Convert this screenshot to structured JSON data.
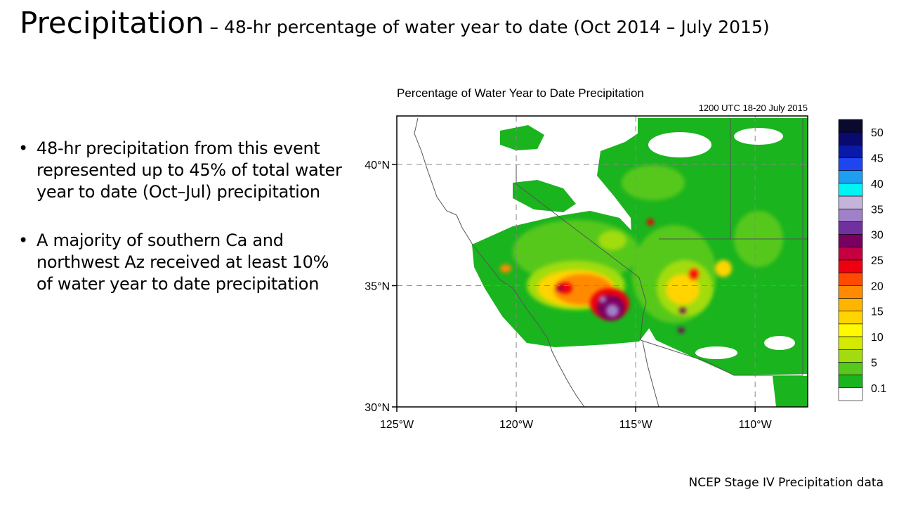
{
  "slide": {
    "title_main": "Precipitation",
    "title_sub": " – 48-hr percentage of water year to date (Oct 2014 – July 2015)",
    "bullets": [
      "48-hr precipitation from this event represented up to 45% of total water year to date (Oct–Jul) precipitation",
      "A majority of southern Ca and northwest Az received at least 10% of water year to date precipitation"
    ],
    "bullet_symbol": "•",
    "footer_source": "NCEP Stage IV Precipitation data"
  },
  "map": {
    "title": "Percentage of Water Year to Date Precipitation",
    "subtitle": "1200 UTC 18-20 July 2015",
    "lat_labels": [
      "40°N",
      "35°N",
      "30°N"
    ],
    "lat_values": [
      40,
      35,
      30
    ],
    "lon_labels": [
      "125°W",
      "120°W",
      "115°W",
      "110°W"
    ],
    "lon_values": [
      -125,
      -120,
      -115,
      -110
    ],
    "extent": {
      "lon_min": -125,
      "lon_max": -107.8,
      "lat_min": 30,
      "lat_max": 42
    },
    "colorbar": {
      "labels": [
        "50",
        "45",
        "40",
        "35",
        "30",
        "25",
        "20",
        "15",
        "10",
        "5",
        "0.1"
      ],
      "colors_top_to_bottom": [
        "#0a0a2e",
        "#0a0a6e",
        "#0a1aa8",
        "#1e46f0",
        "#1e9ef0",
        "#00f4f4",
        "#c4b4dc",
        "#a080c8",
        "#7030a0",
        "#7a0060",
        "#c40040",
        "#ee0010",
        "#ff4a00",
        "#ff8a00",
        "#ffb400",
        "#ffd400",
        "#fffa00",
        "#d4ea00",
        "#a2dc10",
        "#56c81e",
        "#1ab41e",
        "#ffffff"
      ]
    },
    "colors": {
      "light_green": "#1ab41e",
      "mid_green": "#56c81e",
      "yellow_green": "#a2dc10",
      "yellow": "#fffa00",
      "orange": "#ff8a00",
      "red": "#ee0010",
      "crimson": "#c40040",
      "purple": "#7030a0",
      "lavender": "#a080c8"
    }
  }
}
